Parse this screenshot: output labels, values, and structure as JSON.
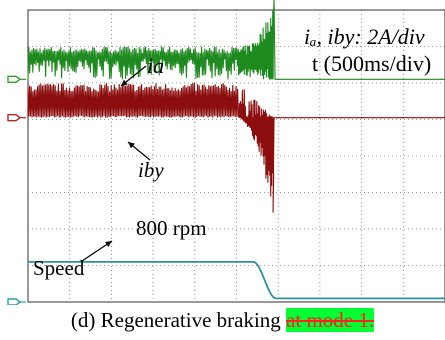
{
  "chart_data": {
    "type": "line",
    "annotations": {
      "scale_label": "iₐ, iby: 2A/div",
      "time_label": "t (500ms/div)",
      "ia_label": "ia",
      "iby_label": "iby",
      "speed_value_label": "800 rpm",
      "speed_label": "Speed"
    },
    "time_per_div_ms": 500,
    "current_per_div_A": 2,
    "x_range_div": [
      0,
      10
    ],
    "y_range_div": [
      0,
      8
    ],
    "grid": true,
    "series": [
      {
        "name": "ia",
        "color": "#1f8a1f",
        "ground_div": 6.1,
        "envelope_div": [
          0.9,
          0.55
        ],
        "braking_start_div": 5.05,
        "transient_peak_div": 2.2,
        "transient_end_div": 5.9,
        "after_div": 0.0
      },
      {
        "name": "iby",
        "color": "#8b0d0d",
        "ground_div": 5.05,
        "envelope_div": [
          0.95,
          0.05
        ],
        "braking_start_div": 5.05,
        "transient_peak_div": -2.6,
        "transient_end_div": 5.9,
        "after_div": 0.0
      },
      {
        "name": "Speed",
        "color": "#2f8fa0",
        "ground_div": 0.0,
        "start_value_rpm": 800,
        "start_level_div": 1.1,
        "decel_start_div": 5.4,
        "decel_end_div": 5.95,
        "after_div": 0.1
      }
    ]
  },
  "caption": {
    "text": "(d) Regenerative braking ",
    "struck": "at mode 1."
  },
  "colors": {
    "ia": "#1f8a1f",
    "iby": "#8b0d0d",
    "speed": "#2f8fa0",
    "marker_ia": "#2ea02e",
    "marker_iby": "#c02020",
    "marker_speed": "#20a0a0"
  }
}
